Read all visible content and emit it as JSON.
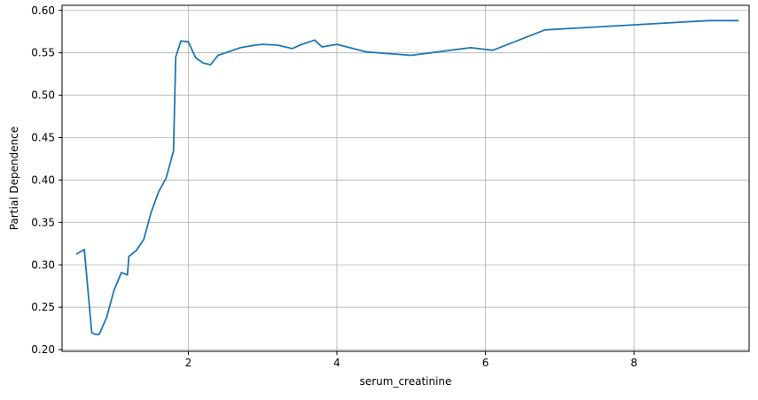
{
  "chart_data": {
    "type": "line",
    "title": "",
    "xlabel": "serum_creatinine",
    "ylabel": "Partial Dependence",
    "xlim": [
      0.3,
      9.55
    ],
    "ylim": [
      0.198,
      0.606
    ],
    "grid": true,
    "x_ticks": [
      2,
      4,
      6,
      8
    ],
    "x_tick_labels": [
      "2",
      "4",
      "6",
      "8"
    ],
    "y_ticks": [
      0.2,
      0.25,
      0.3,
      0.35,
      0.4,
      0.45,
      0.5,
      0.55,
      0.6
    ],
    "y_tick_labels": [
      "0.20",
      "0.25",
      "0.30",
      "0.35",
      "0.40",
      "0.45",
      "0.50",
      "0.55",
      "0.60"
    ],
    "series": [
      {
        "color": "#1f77b4",
        "points": [
          [
            0.5,
            0.313
          ],
          [
            0.6,
            0.318
          ],
          [
            0.7,
            0.22
          ],
          [
            0.75,
            0.218
          ],
          [
            0.8,
            0.218
          ],
          [
            0.9,
            0.238
          ],
          [
            1.0,
            0.27
          ],
          [
            1.1,
            0.291
          ],
          [
            1.18,
            0.288
          ],
          [
            1.2,
            0.31
          ],
          [
            1.3,
            0.317
          ],
          [
            1.4,
            0.33
          ],
          [
            1.5,
            0.362
          ],
          [
            1.6,
            0.386
          ],
          [
            1.7,
            0.402
          ],
          [
            1.8,
            0.434
          ],
          [
            1.83,
            0.545
          ],
          [
            1.9,
            0.564
          ],
          [
            2.0,
            0.563
          ],
          [
            2.1,
            0.544
          ],
          [
            2.2,
            0.538
          ],
          [
            2.3,
            0.536
          ],
          [
            2.4,
            0.547
          ],
          [
            2.5,
            0.55
          ],
          [
            2.7,
            0.556
          ],
          [
            2.9,
            0.559
          ],
          [
            3.0,
            0.56
          ],
          [
            3.2,
            0.559
          ],
          [
            3.4,
            0.555
          ],
          [
            3.5,
            0.559
          ],
          [
            3.7,
            0.565
          ],
          [
            3.8,
            0.557
          ],
          [
            4.0,
            0.56
          ],
          [
            4.4,
            0.551
          ],
          [
            5.0,
            0.547
          ],
          [
            5.8,
            0.556
          ],
          [
            6.1,
            0.553
          ],
          [
            6.8,
            0.577
          ],
          [
            9.0,
            0.588
          ],
          [
            9.4,
            0.588
          ]
        ]
      }
    ]
  }
}
